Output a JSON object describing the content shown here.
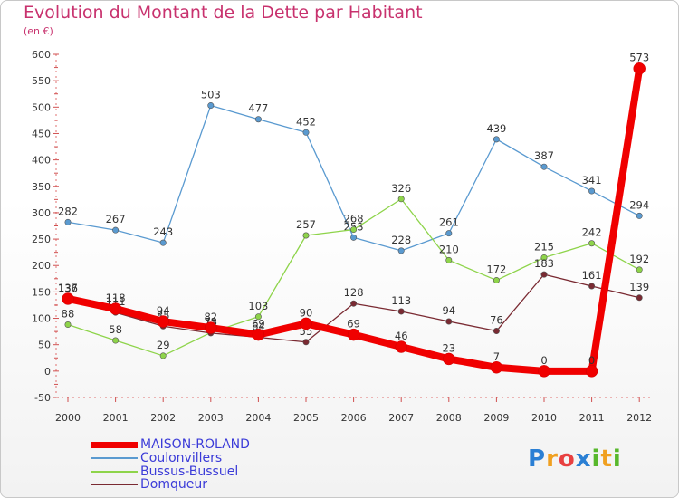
{
  "header": {
    "title": "Evolution du Montant de la Dette par Habitant",
    "unit": "(en €)"
  },
  "brand": {
    "logo_text": "Proxiti",
    "letter_colors": [
      "#2a7fd4",
      "#f0a020",
      "#e84040",
      "#2a7fd4",
      "#58b82c",
      "#f0a020",
      "#58b82c"
    ]
  },
  "chart_data": {
    "type": "line",
    "x": [
      "2000",
      "2001",
      "2002",
      "2003",
      "2004",
      "2005",
      "2006",
      "2007",
      "2008",
      "2009",
      "2010",
      "2011",
      "2012"
    ],
    "ylim": [
      -50,
      600
    ],
    "yticks": [
      "-50",
      "0",
      "50",
      "100",
      "150",
      "200",
      "250",
      "300",
      "350",
      "400",
      "450",
      "500",
      "550",
      "600"
    ],
    "grid": false,
    "legend_position": "bottom-left",
    "series": [
      {
        "name": "Coulonvillers",
        "color": "#5a9ad0",
        "values": [
          282,
          267,
          243,
          503,
          477,
          452,
          253,
          228,
          261,
          439,
          387,
          341,
          294
        ]
      },
      {
        "name": "Bussus-Bussuel",
        "color": "#8ed44a",
        "values": [
          88,
          58,
          29,
          73,
          103,
          257,
          268,
          326,
          210,
          172,
          215,
          242,
          192
        ]
      },
      {
        "name": "Domqueur",
        "color": "#7a2a32",
        "values": [
          136,
          111,
          85,
          72,
          64,
          55,
          128,
          113,
          94,
          76,
          183,
          161,
          139
        ]
      },
      {
        "name": "MAISON-ROLAND",
        "color": "#f00000",
        "values": [
          137,
          118,
          94,
          82,
          69,
          90,
          69,
          46,
          23,
          7,
          0,
          0,
          573
        ]
      }
    ],
    "legend_order": [
      "MAISON-ROLAND",
      "Coulonvillers",
      "Bussus-Bussuel",
      "Domqueur"
    ]
  }
}
